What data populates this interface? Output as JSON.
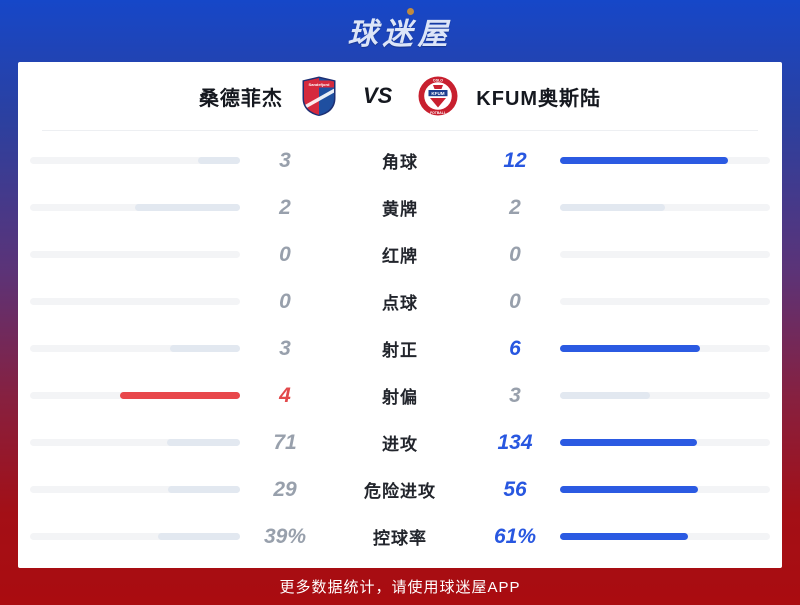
{
  "app": {
    "logo": "球迷屋",
    "footer": "更多数据统计，请使用球迷屋APP"
  },
  "match": {
    "home": {
      "name": "桑德菲杰",
      "badge": "sandefjord-shield"
    },
    "vs": "VS",
    "away": {
      "name": "KFUM奥斯陆",
      "badge": "kfum-oslo-crest",
      "badge_text_top": "OSLO",
      "badge_text_center": "KFUM",
      "badge_text_bottom": "FOTBALL"
    }
  },
  "colors": {
    "accent_blue": "#2b5ae2",
    "accent_red": "#e8474b",
    "neutral_fill": "#e2e8f0",
    "bar_track": "#f3f4f6",
    "gray_text": "#98a0ac",
    "bg_top": "#1647c8",
    "bg_bottom": "#aa0c10"
  },
  "stats": [
    {
      "label": "角球",
      "home": {
        "value": "3",
        "state": "lose"
      },
      "away": {
        "value": "12",
        "state": "win"
      }
    },
    {
      "label": "黄牌",
      "home": {
        "value": "2",
        "state": "draw"
      },
      "away": {
        "value": "2",
        "state": "draw"
      }
    },
    {
      "label": "红牌",
      "home": {
        "value": "0",
        "state": "zero"
      },
      "away": {
        "value": "0",
        "state": "zero"
      }
    },
    {
      "label": "点球",
      "home": {
        "value": "0",
        "state": "zero"
      },
      "away": {
        "value": "0",
        "state": "zero"
      }
    },
    {
      "label": "射正",
      "home": {
        "value": "3",
        "state": "lose"
      },
      "away": {
        "value": "6",
        "state": "win"
      }
    },
    {
      "label": "射偏",
      "home": {
        "value": "4",
        "state": "win"
      },
      "away": {
        "value": "3",
        "state": "lose"
      }
    },
    {
      "label": "进攻",
      "home": {
        "value": "71",
        "state": "lose"
      },
      "away": {
        "value": "134",
        "state": "win"
      }
    },
    {
      "label": "危险进攻",
      "home": {
        "value": "29",
        "state": "lose"
      },
      "away": {
        "value": "56",
        "state": "win"
      }
    },
    {
      "label": "控球率",
      "home": {
        "value": "39%",
        "state": "lose"
      },
      "away": {
        "value": "61%",
        "state": "win"
      }
    }
  ]
}
